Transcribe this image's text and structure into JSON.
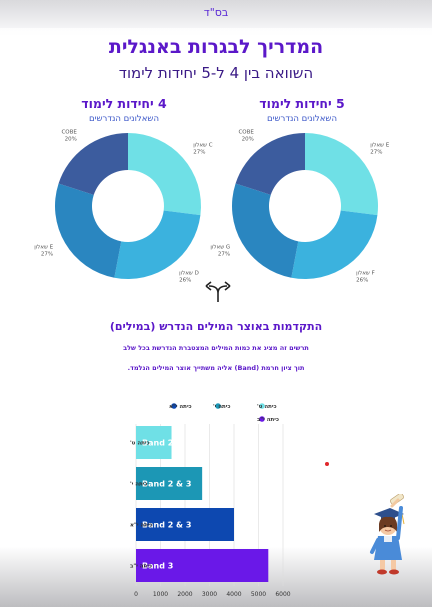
{
  "header": {
    "bsd": "בס\"ד"
  },
  "title": "המדריך לבגרות באנגלית",
  "subtitle": "השוואה בין 4 ל-5 יחידות לימוד",
  "donuts_section": {
    "left": {
      "title": "5 יחידות לימוד",
      "subtitle": "השאלונים הנדרשים"
    },
    "right": {
      "title": "4 יחידות לימוד",
      "subtitle": "השאלונים הנדרשים"
    }
  },
  "vocab_section": {
    "title": "התקדמות באוצר המילים הנדרש (במילים)",
    "line1": "תרשים זה מציג את כמות המילים המצטברת הנדרשת בכל שלב",
    "line2": "תוך ציון חרמת (Band) אליה משתייך אוצר המילים הנלמד."
  },
  "colors": {
    "title_purple": "#5b18c9",
    "donut_cyan": "#6fe0e6",
    "donut_sky": "#3bb2de",
    "donut_blue": "#2a86c0",
    "donut_slate": "#3c5c9e",
    "bar_cyan": "#6fe0e6",
    "bar_teal": "#1c97b5",
    "bar_blue": "#0d48b0",
    "bar_purple": "#6a18e8"
  },
  "chart_data": [
    {
      "type": "pie",
      "title": "5 יחידות לימוד",
      "labels": [
        "שאלון E",
        "שאלון F",
        "שאלון G",
        "COBE"
      ],
      "values": [
        27,
        26,
        27,
        20
      ],
      "value_labels": [
        "27%",
        "26%",
        "27%",
        "20%"
      ],
      "colors": [
        "#6fe0e6",
        "#3bb2de",
        "#2a86c0",
        "#3c5c9e"
      ]
    },
    {
      "type": "pie",
      "title": "4 יחידות לימוד",
      "labels": [
        "שאלון C",
        "שאלון D",
        "שאלון E",
        "COBE"
      ],
      "values": [
        27,
        26,
        27,
        20
      ],
      "value_labels": [
        "27%",
        "26%",
        "27%",
        "20%"
      ],
      "colors": [
        "#6fe0e6",
        "#3bb2de",
        "#2a86c0",
        "#3c5c9e"
      ]
    },
    {
      "type": "bar",
      "orientation": "horizontal",
      "categories": [
        "כיתה ט'",
        "כיתה י'",
        "כיתה י\"א",
        "כיתה י\"ב"
      ],
      "values": [
        1450,
        2700,
        4000,
        5400
      ],
      "bar_labels": [
        "Band 2",
        "Band 2 & 3",
        "Band 2 & 3",
        "Band 3"
      ],
      "colors": [
        "#6fe0e6",
        "#1c97b5",
        "#0d48b0",
        "#6a18e8"
      ],
      "legend": [
        "כיתה ט'",
        "כיתה י'",
        "כיתה י\"א",
        "כיתה י\"ב"
      ],
      "legend_position": "top",
      "xlim": [
        0,
        6000
      ],
      "xticks": [
        0,
        1000,
        2000,
        3000,
        4000,
        5000,
        6000
      ],
      "grid": true
    }
  ]
}
